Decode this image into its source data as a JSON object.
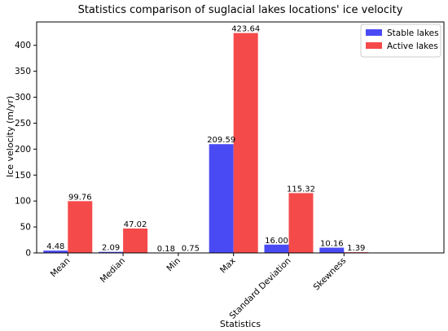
{
  "chart_data": {
    "type": "bar",
    "title": "Statistics comparison of suglacial lakes locations' ice velocity",
    "xlabel": "Statistics",
    "ylabel": "Ice velocity (m/yr)",
    "categories": [
      "Mean",
      "Median",
      "Min",
      "Max",
      "Standard Deviation",
      "Skewness"
    ],
    "series": [
      {
        "name": "Stable lakes",
        "color": "#4a4af5",
        "values": [
          4.48,
          2.09,
          0.18,
          209.59,
          16.0,
          10.16
        ],
        "labels": [
          "4.48",
          "2.09",
          "0.18",
          "209.59",
          "16.00",
          "10.16"
        ]
      },
      {
        "name": "Active lakes",
        "color": "#f54a4a",
        "values": [
          99.76,
          47.02,
          0.75,
          423.64,
          115.32,
          1.39
        ],
        "labels": [
          "99.76",
          "47.02",
          "0.75",
          "423.64",
          "115.32",
          "1.39"
        ]
      }
    ],
    "ylim": [
      0,
      445
    ],
    "yticks": [
      0,
      50,
      100,
      150,
      200,
      250,
      300,
      350,
      400
    ],
    "legend": "top-right",
    "grid": false
  }
}
